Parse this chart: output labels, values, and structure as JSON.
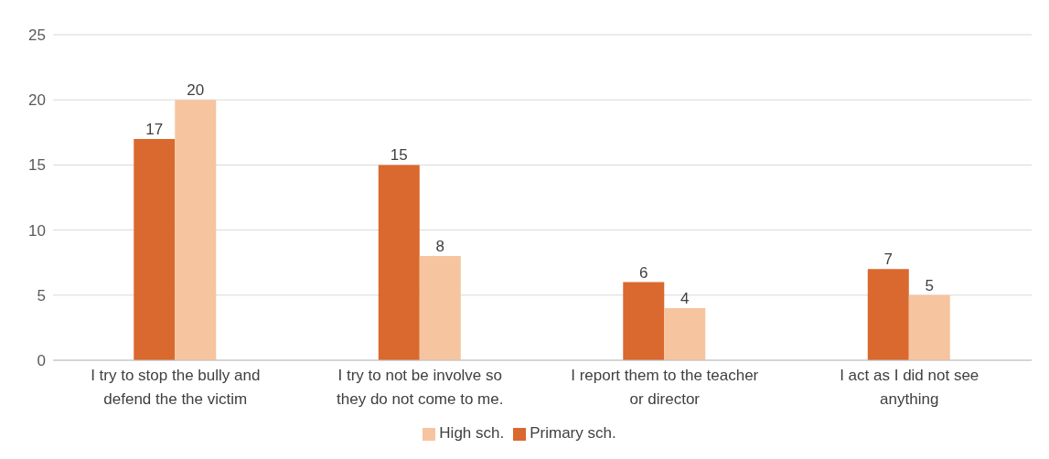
{
  "chart_data": {
    "type": "bar",
    "categories": [
      "I try to stop the bully and defend the the victim",
      "I try to not be involve so they do not come to me.",
      "I report them to the teacher or director",
      "I act as I did not see anything"
    ],
    "series": [
      {
        "name": "Primary sch.",
        "color": "#d9692e",
        "values": [
          17,
          15,
          6,
          7
        ]
      },
      {
        "name": "High sch.",
        "color": "#f7c4a0",
        "values": [
          20,
          8,
          4,
          5
        ]
      }
    ],
    "ylim": [
      0,
      25
    ],
    "yticks": [
      0,
      5,
      10,
      15,
      20,
      25
    ],
    "grid": "y",
    "legend": "bottom",
    "data_labels": true
  }
}
